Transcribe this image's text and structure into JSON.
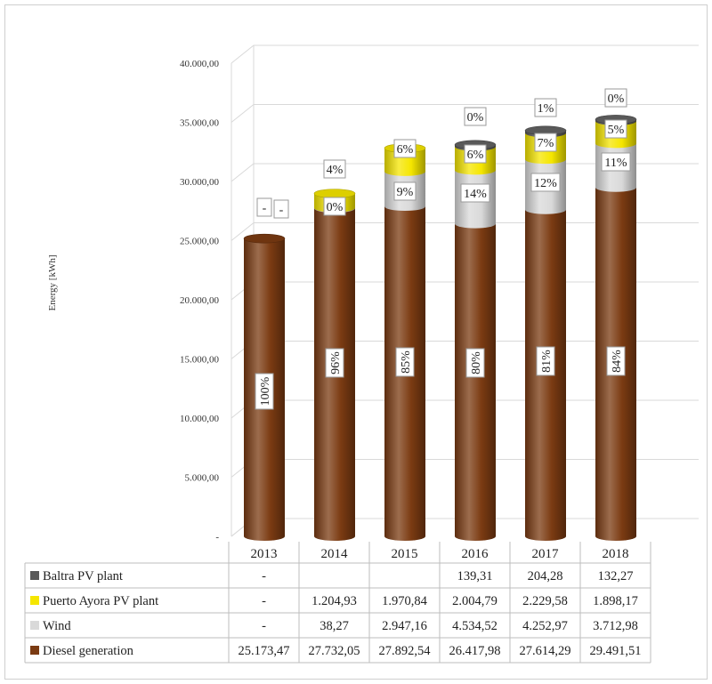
{
  "chart_data": {
    "type": "bar",
    "stacked": true,
    "style": "3d-cylinder",
    "title": "",
    "xlabel": "",
    "ylabel": "Energy [kWh]",
    "ylim": [
      0,
      40000
    ],
    "grid": true,
    "legend": "data-table-left",
    "y_ticks": [
      "-",
      "5.000,00",
      "10.000,00",
      "15.000,00",
      "20.000,00",
      "25.000,00",
      "30.000,00",
      "35.000,00",
      "40.000,00"
    ],
    "categories": [
      "2013",
      "2014",
      "2015",
      "2016",
      "2017",
      "2018"
    ],
    "series": [
      {
        "name": "Diesel generation",
        "color": "#7b3b12",
        "values": [
          25173.47,
          27732.05,
          27892.54,
          26417.98,
          27614.29,
          29491.51
        ],
        "table_values": [
          "25.173,47",
          "27.732,05",
          "27.892,54",
          "26.417,98",
          "27.614,29",
          "29.491,51"
        ],
        "percent_labels": [
          "100%",
          "96%",
          "85%",
          "80%",
          "81%",
          "84%"
        ]
      },
      {
        "name": "Wind",
        "color": "#d9d9d9",
        "values": [
          0,
          38.27,
          2947.16,
          4534.52,
          4252.97,
          3712.98
        ],
        "table_values": [
          "-",
          "38,27",
          "2.947,16",
          "4.534,52",
          "4.252,97",
          "3.712,98"
        ],
        "percent_labels": [
          "-",
          "0%",
          "9%",
          "14%",
          "12%",
          "11%"
        ]
      },
      {
        "name": "Puerto Ayora PV plant",
        "color": "#f5e600",
        "values": [
          0,
          1204.93,
          1970.84,
          2004.79,
          2229.58,
          1898.17
        ],
        "table_values": [
          "-",
          "1.204,93",
          "1.970,84",
          "2.004,79",
          "2.229,58",
          "1.898,17"
        ],
        "percent_labels": [
          "-",
          "4%",
          "6%",
          "6%",
          "7%",
          "5%"
        ]
      },
      {
        "name": "Baltra PV plant",
        "color": "#595959",
        "values": [
          0,
          0,
          0,
          139.31,
          204.28,
          132.27
        ],
        "table_values": [
          "-",
          "",
          "",
          "139,31",
          "204,28",
          "132,27"
        ],
        "percent_labels": [
          "-",
          "",
          "",
          "0%",
          "1%",
          "0%"
        ]
      }
    ]
  }
}
